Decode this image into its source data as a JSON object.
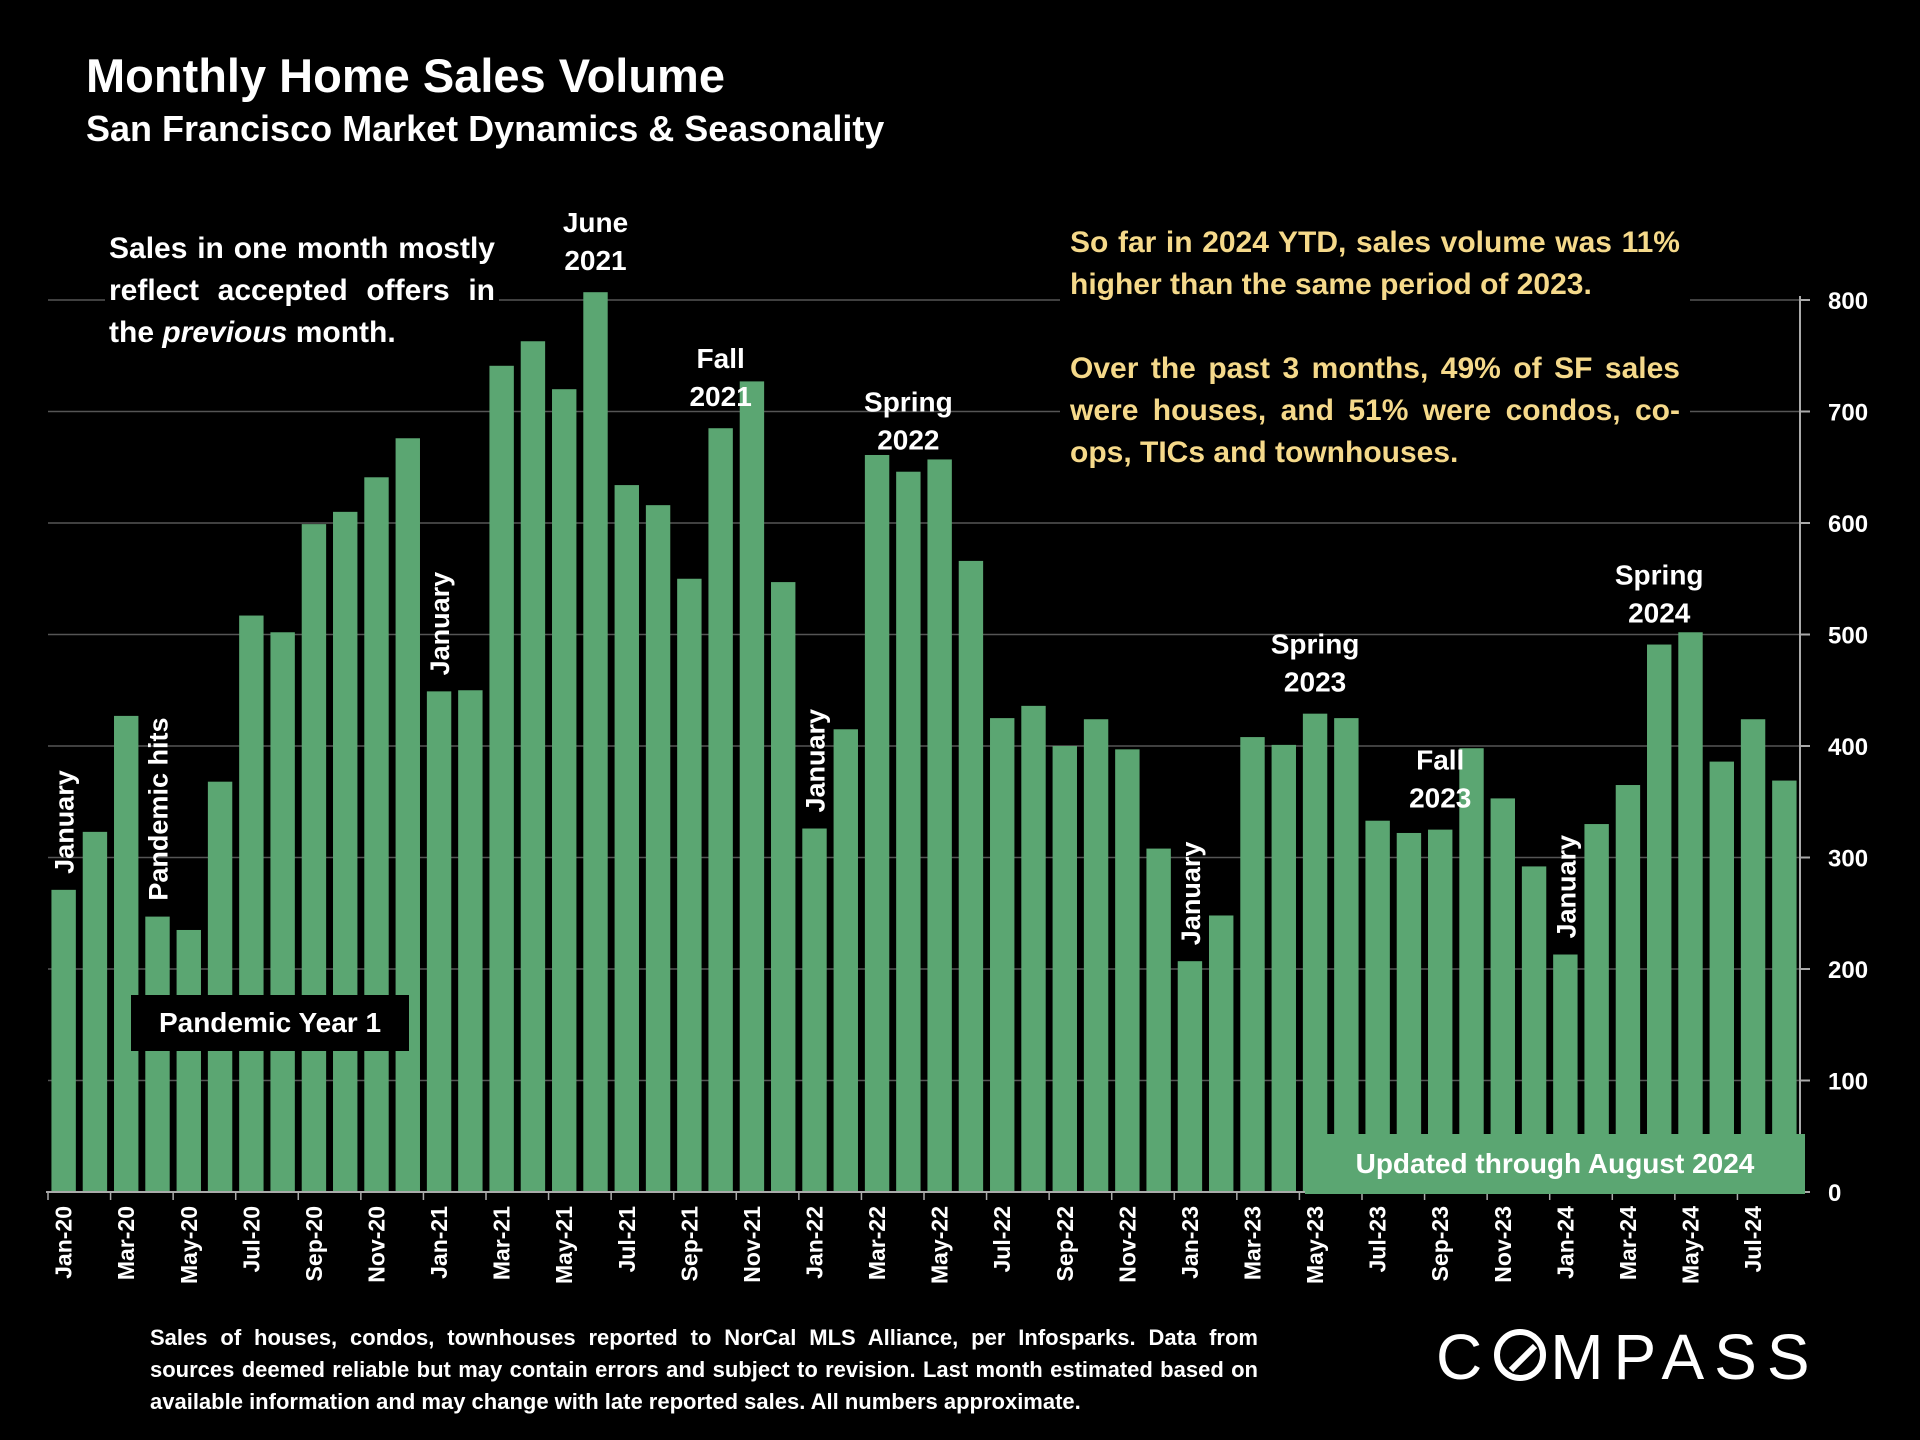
{
  "title": "Monthly Home Sales Volume",
  "subtitle": "San Francisco Market Dynamics & Seasonality",
  "notes": {
    "left_before": "Sales in one month mostly reflect accepted offers in the ",
    "left_italic": "previous",
    "left_after": " month.",
    "right_1": "So far in 2024 YTD, sales volume was 11% higher than the same period of 2023.",
    "right_2": "Over the past 3 months, 49% of SF sales were houses, and 51% were condos, co-ops, TICs and townhouses."
  },
  "badges": {
    "pandemic_year": "Pandemic Year 1",
    "updated": "Updated through August 2024"
  },
  "footnote": "Sales of houses, condos, townhouses reported to NorCal MLS Alliance, per Infosparks. Data from sources deemed reliable but may contain errors and subject to revision. Last month estimated based on available information and may change with late reported sales. All numbers approximate.",
  "logo": {
    "before": "C",
    "after": "MPASS",
    "icon": "compass-o-logo-icon"
  },
  "colors": {
    "bar": "#5ba672",
    "background": "#000000",
    "note_right": "#f5d98a",
    "grid": "#555555"
  },
  "chart_data": {
    "type": "bar",
    "categories": [
      "Jan-20",
      "Feb-20",
      "Mar-20",
      "Apr-20",
      "May-20",
      "Jun-20",
      "Jul-20",
      "Aug-20",
      "Sep-20",
      "Oct-20",
      "Nov-20",
      "Dec-20",
      "Jan-21",
      "Feb-21",
      "Mar-21",
      "Apr-21",
      "May-21",
      "Jun-21",
      "Jul-21",
      "Aug-21",
      "Sep-21",
      "Oct-21",
      "Nov-21",
      "Dec-21",
      "Jan-22",
      "Feb-22",
      "Mar-22",
      "Apr-22",
      "May-22",
      "Jun-22",
      "Jul-22",
      "Aug-22",
      "Sep-22",
      "Oct-22",
      "Nov-22",
      "Dec-22",
      "Jan-23",
      "Feb-23",
      "Mar-23",
      "Apr-23",
      "May-23",
      "Jun-23",
      "Jul-23",
      "Aug-23",
      "Sep-23",
      "Oct-23",
      "Nov-23",
      "Dec-23",
      "Jan-24",
      "Feb-24",
      "Mar-24",
      "Apr-24",
      "May-24",
      "Jun-24",
      "Jul-24",
      "Aug-24"
    ],
    "values": [
      271,
      323,
      427,
      247,
      235,
      368,
      517,
      502,
      599,
      610,
      641,
      676,
      449,
      450,
      741,
      763,
      720,
      807,
      634,
      616,
      550,
      685,
      727,
      547,
      326,
      415,
      661,
      646,
      657,
      566,
      425,
      436,
      400,
      424,
      397,
      308,
      207,
      248,
      408,
      401,
      429,
      425,
      333,
      322,
      325,
      398,
      353,
      292,
      213,
      330,
      365,
      491,
      502,
      386,
      424,
      369
    ],
    "x_tick_labels": [
      "Jan-20",
      "Mar-20",
      "May-20",
      "Jul-20",
      "Sep-20",
      "Nov-20",
      "Jan-21",
      "Mar-21",
      "May-21",
      "Jul-21",
      "Sep-21",
      "Nov-21",
      "Jan-22",
      "Mar-22",
      "May-22",
      "Jul-22",
      "Sep-22",
      "Nov-22",
      "Jan-23",
      "Mar-23",
      "May-23",
      "Jul-23",
      "Sep-23",
      "Nov-23",
      "Jan-24",
      "Mar-24",
      "May-24",
      "Jul-24"
    ],
    "y_ticks": [
      0,
      100,
      200,
      300,
      400,
      500,
      600,
      700,
      800
    ],
    "ylim": [
      0,
      800
    ],
    "y_axis_side": "right",
    "grid": true,
    "annotations": [
      {
        "text": "January",
        "at": "Jan-20",
        "vertical": true
      },
      {
        "text": "Pandemic hits",
        "at": "Apr-20",
        "vertical": true
      },
      {
        "text": "January",
        "at": "Jan-21",
        "vertical": true
      },
      {
        "text": "June\n2021",
        "at": "Jun-21",
        "vertical": false
      },
      {
        "text": "Fall\n2021",
        "at": "Oct-21",
        "vertical": false
      },
      {
        "text": "January",
        "at": "Jan-22",
        "vertical": true
      },
      {
        "text": "Spring\n2022",
        "at": "Apr-22",
        "vertical": false
      },
      {
        "text": "January",
        "at": "Jan-23",
        "vertical": true
      },
      {
        "text": "Spring\n2023",
        "at": "May-23",
        "vertical": false
      },
      {
        "text": "Fall\n2023",
        "at": "Sep-23",
        "vertical": false
      },
      {
        "text": "January",
        "at": "Jan-24",
        "vertical": true
      },
      {
        "text": "Spring\n2024",
        "at": "Apr-24",
        "vertical": false
      }
    ]
  }
}
